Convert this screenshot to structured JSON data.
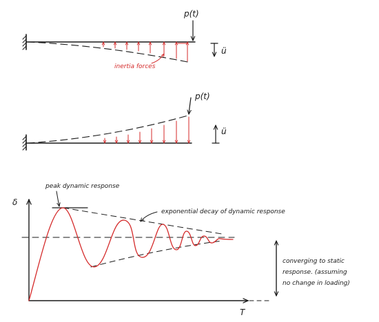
{
  "top_beam": {
    "load_label": "p(t)",
    "accel_label": "ü",
    "inertia_label": "inertia forces"
  },
  "middle_beam": {
    "load_label": "p(t)",
    "accel_label": "ü"
  },
  "response_plot": {
    "y_axis_label": "δ",
    "x_axis_label": "T",
    "peak_label": "peak dynamic response",
    "decay_label": "exponential decay of dynamic response",
    "converge_lines": [
      "converging to static",
      "response. (assuming",
      "no change in loading)"
    ]
  },
  "colors": {
    "ink": "#1a1a1a",
    "force": "#d42a2a"
  }
}
